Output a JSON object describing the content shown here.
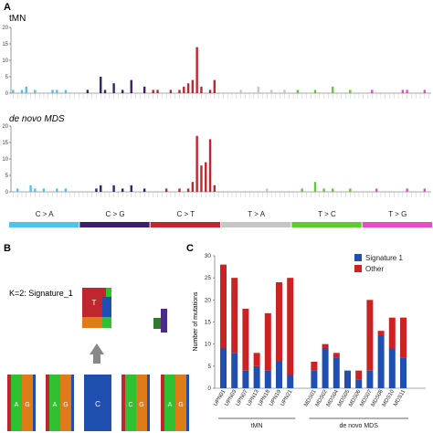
{
  "panels": {
    "A": "A",
    "B": "B",
    "C": "C"
  },
  "colors": {
    "C>A": "#4dc4ec",
    "C>G": "#3b1f6e",
    "C>T": "#c0262d",
    "T>A": "#c6c6c6",
    "T>C": "#5ecb2e",
    "T>G": "#e84cc4",
    "signature1": "#1f4fb0",
    "other": "#cc2222"
  },
  "chart_data": [
    {
      "type": "bar",
      "title": "tMN",
      "ylim": [
        0,
        20
      ],
      "yticks": [
        "0",
        "5",
        "10",
        "15",
        "20"
      ],
      "categories_by_class": [
        "C > A",
        "C > G",
        "C > T",
        "T > A",
        "T > C",
        "T > G"
      ],
      "values": [
        1,
        0,
        1,
        2,
        0,
        1,
        0,
        0,
        0,
        1,
        1,
        0,
        1,
        0,
        0,
        0,
        0,
        1,
        0,
        0,
        5,
        1,
        0,
        3,
        0,
        1,
        0,
        4,
        0,
        0,
        2,
        0,
        1,
        1,
        0,
        0,
        1,
        0,
        1,
        2,
        3,
        4,
        14,
        2,
        0,
        1,
        4,
        0,
        0,
        0,
        0,
        0,
        1,
        0,
        0,
        0,
        2,
        0,
        0,
        1,
        0,
        0,
        1,
        0,
        0,
        1,
        0,
        0,
        0,
        1,
        0,
        0,
        0,
        2,
        0,
        0,
        0,
        1,
        0,
        0,
        0,
        0,
        1,
        0,
        0,
        0,
        0,
        0,
        0,
        1,
        1,
        0,
        0,
        0,
        1,
        0
      ]
    },
    {
      "type": "bar",
      "title": "de novo MDS",
      "ylim": [
        0,
        20
      ],
      "yticks": [
        "0",
        "5",
        "10",
        "15",
        "20"
      ],
      "categories_by_class": [
        "C > A",
        "C > G",
        "C > T",
        "T > A",
        "T > C",
        "T > G"
      ],
      "values": [
        0,
        1,
        0,
        0,
        2,
        1,
        0,
        1,
        0,
        0,
        1,
        0,
        1,
        0,
        0,
        0,
        0,
        0,
        0,
        1,
        2,
        0,
        0,
        2,
        0,
        1,
        0,
        2,
        0,
        0,
        1,
        0,
        0,
        0,
        0,
        1,
        0,
        0,
        1,
        0,
        1,
        3,
        17,
        8,
        9,
        16,
        2,
        0,
        0,
        0,
        0,
        0,
        0,
        0,
        0,
        0,
        0,
        0,
        1,
        0,
        0,
        0,
        0,
        0,
        0,
        0,
        1,
        0,
        0,
        3,
        0,
        1,
        0,
        1,
        0,
        0,
        0,
        1,
        0,
        0,
        0,
        0,
        0,
        1,
        0,
        0,
        0,
        0,
        0,
        0,
        1,
        0,
        0,
        0,
        1,
        0
      ]
    },
    {
      "type": "bar",
      "stacked": true,
      "ylabel": "Number of mutations",
      "ylim": [
        0,
        30
      ],
      "yticks": [
        "0",
        "5",
        "10",
        "15",
        "20",
        "25",
        "30"
      ],
      "categories": [
        "UPN01",
        "UPN03",
        "UPN07",
        "UPN13",
        "UPN18",
        "UPN19",
        "UPN21",
        "MDS01",
        "MDS02",
        "MDS04",
        "MDS05",
        "MDS06",
        "MDS07",
        "MDS08",
        "MDS10",
        "MDS11"
      ],
      "groups": [
        {
          "label": "tMN",
          "count": 7
        },
        {
          "label": "de novo MDS",
          "count": 9
        }
      ],
      "series": [
        {
          "name": "Signature 1",
          "values": [
            9,
            8,
            4,
            5,
            4,
            6,
            3,
            4,
            9,
            7,
            4,
            2,
            4,
            12,
            9,
            7
          ]
        },
        {
          "name": "Other",
          "values": [
            19,
            17,
            14,
            3,
            13,
            18,
            22,
            2,
            1,
            1,
            0,
            2,
            16,
            1,
            7,
            9
          ]
        }
      ],
      "legend": "top-right"
    }
  ],
  "signature_block": {
    "label": "K=2: Signature_1",
    "top_letter": "T",
    "bottom_letters": [
      [
        "A",
        "G"
      ],
      [
        "A",
        "G"
      ],
      [
        "C"
      ],
      [
        "C",
        "G"
      ],
      [
        "A",
        "G"
      ]
    ]
  }
}
